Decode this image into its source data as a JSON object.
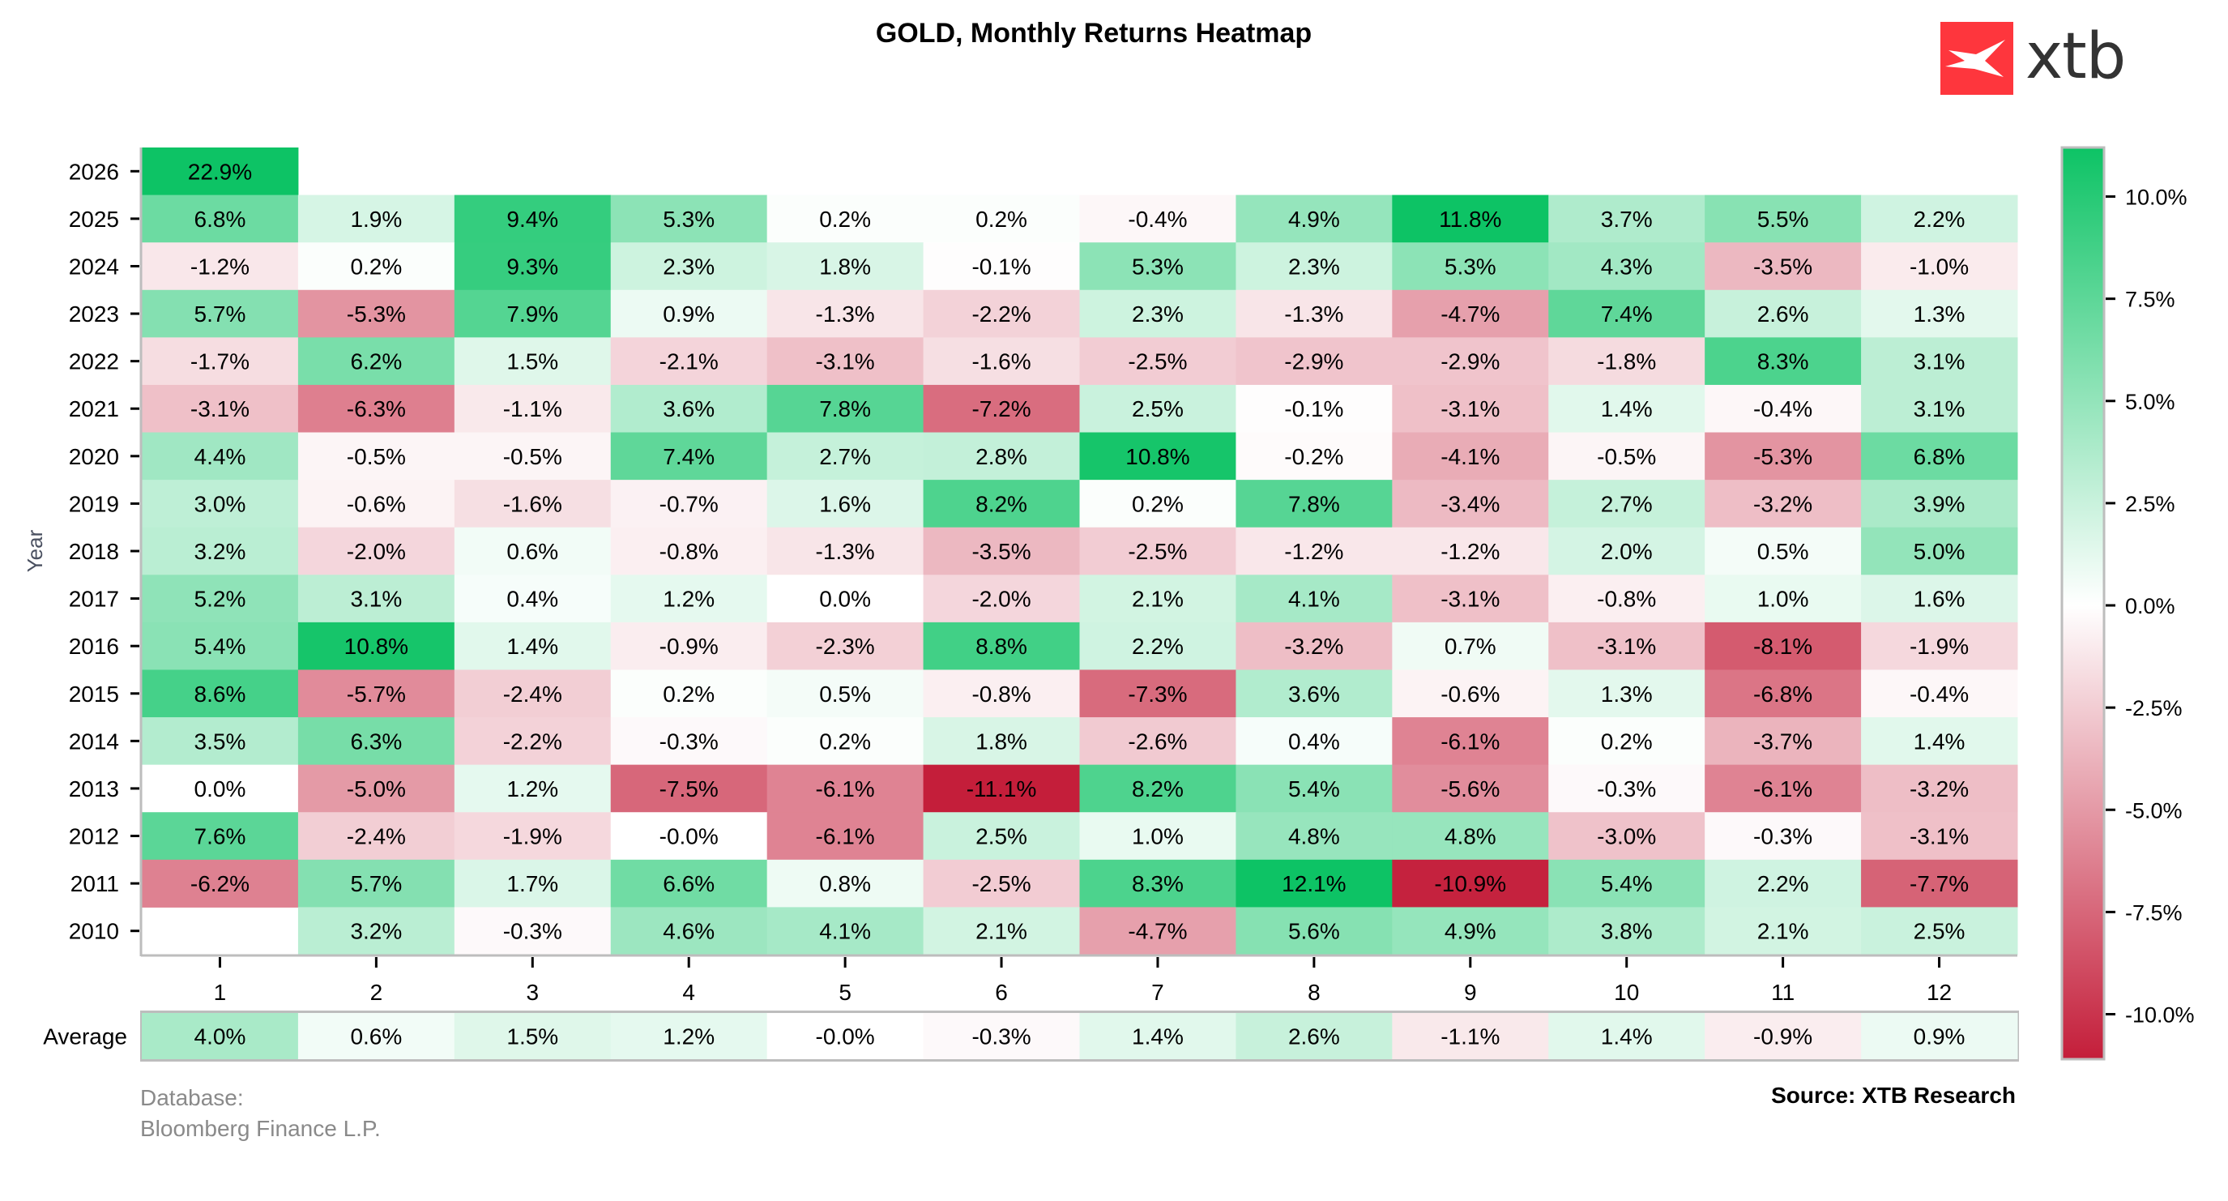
{
  "header": {
    "title": "GOLD, Monthly Returns Heatmap",
    "logo_text": "xtb",
    "logo_icon": "xtb-x-icon",
    "brand_color": "#fe363d"
  },
  "footer": {
    "database_label": "Database:",
    "database_value": "Bloomberg Finance L.P.",
    "source": "Source: XTB Research"
  },
  "chart_data": {
    "type": "heatmap",
    "title": "GOLD, Monthly Returns Heatmap",
    "xlabel": "",
    "ylabel": "Year",
    "x": [
      "1",
      "2",
      "3",
      "4",
      "5",
      "6",
      "7",
      "8",
      "9",
      "10",
      "11",
      "12"
    ],
    "y": [
      "2026",
      "2025",
      "2024",
      "2023",
      "2022",
      "2021",
      "2020",
      "2019",
      "2018",
      "2017",
      "2016",
      "2015",
      "2014",
      "2013",
      "2012",
      "2011",
      "2010"
    ],
    "unit": "%",
    "values": [
      [
        22.9,
        null,
        null,
        null,
        null,
        null,
        null,
        null,
        null,
        null,
        null,
        null
      ],
      [
        6.8,
        1.9,
        9.4,
        5.3,
        0.2,
        0.2,
        -0.4,
        4.9,
        11.8,
        3.7,
        5.5,
        2.2
      ],
      [
        -1.2,
        0.2,
        9.3,
        2.3,
        1.8,
        -0.1,
        5.3,
        2.3,
        5.3,
        4.3,
        -3.5,
        -1.0
      ],
      [
        5.7,
        -5.3,
        7.9,
        0.9,
        -1.3,
        -2.2,
        2.3,
        -1.3,
        -4.7,
        7.4,
        2.6,
        1.3
      ],
      [
        -1.7,
        6.2,
        1.5,
        -2.1,
        -3.1,
        -1.6,
        -2.5,
        -2.9,
        -2.9,
        -1.8,
        8.3,
        3.1
      ],
      [
        -3.1,
        -6.3,
        -1.1,
        3.6,
        7.8,
        -7.2,
        2.5,
        -0.1,
        -3.1,
        1.4,
        -0.4,
        3.1
      ],
      [
        4.4,
        -0.5,
        -0.5,
        7.4,
        2.7,
        2.8,
        10.8,
        -0.2,
        -4.1,
        -0.5,
        -5.3,
        6.8
      ],
      [
        3.0,
        -0.6,
        -1.6,
        -0.7,
        1.6,
        8.2,
        0.2,
        7.8,
        -3.4,
        2.7,
        -3.2,
        3.9
      ],
      [
        3.2,
        -2.0,
        0.6,
        -0.8,
        -1.3,
        -3.5,
        -2.5,
        -1.2,
        -1.2,
        2.0,
        0.5,
        5.0
      ],
      [
        5.2,
        3.1,
        0.4,
        1.2,
        0.0,
        -2.0,
        2.1,
        4.1,
        -3.1,
        -0.8,
        1.0,
        1.6
      ],
      [
        5.4,
        10.8,
        1.4,
        -0.9,
        -2.3,
        8.8,
        2.2,
        -3.2,
        0.7,
        -3.1,
        -8.1,
        -1.9
      ],
      [
        8.6,
        -5.7,
        -2.4,
        0.2,
        0.5,
        -0.8,
        -7.3,
        3.6,
        -0.6,
        1.3,
        -6.8,
        -0.4
      ],
      [
        3.5,
        6.3,
        -2.2,
        -0.3,
        0.2,
        1.8,
        -2.6,
        0.4,
        -6.1,
        0.2,
        -3.7,
        1.4
      ],
      [
        0.0,
        -5.0,
        1.2,
        -7.5,
        -6.1,
        -11.1,
        8.2,
        5.4,
        -5.6,
        -0.3,
        -6.1,
        -3.2
      ],
      [
        7.6,
        -2.4,
        -1.9,
        -0.0,
        -6.1,
        2.5,
        1.0,
        4.8,
        4.8,
        -3.0,
        -0.3,
        -3.1
      ],
      [
        -6.2,
        5.7,
        1.7,
        6.6,
        0.8,
        -2.5,
        8.3,
        12.1,
        -10.9,
        5.4,
        2.2,
        -7.7
      ],
      [
        null,
        3.2,
        -0.3,
        4.6,
        4.1,
        2.1,
        -4.7,
        5.6,
        4.9,
        3.8,
        2.1,
        2.5
      ]
    ],
    "labels": [
      [
        "22.9%",
        "",
        "",
        "",
        "",
        "",
        "",
        "",
        "",
        "",
        "",
        ""
      ],
      [
        "6.8%",
        "1.9%",
        "9.4%",
        "5.3%",
        "0.2%",
        "0.2%",
        "-0.4%",
        "4.9%",
        "11.8%",
        "3.7%",
        "5.5%",
        "2.2%"
      ],
      [
        "-1.2%",
        "0.2%",
        "9.3%",
        "2.3%",
        "1.8%",
        "-0.1%",
        "5.3%",
        "2.3%",
        "5.3%",
        "4.3%",
        "-3.5%",
        "-1.0%"
      ],
      [
        "5.7%",
        "-5.3%",
        "7.9%",
        "0.9%",
        "-1.3%",
        "-2.2%",
        "2.3%",
        "-1.3%",
        "-4.7%",
        "7.4%",
        "2.6%",
        "1.3%"
      ],
      [
        "-1.7%",
        "6.2%",
        "1.5%",
        "-2.1%",
        "-3.1%",
        "-1.6%",
        "-2.5%",
        "-2.9%",
        "-2.9%",
        "-1.8%",
        "8.3%",
        "3.1%"
      ],
      [
        "-3.1%",
        "-6.3%",
        "-1.1%",
        "3.6%",
        "7.8%",
        "-7.2%",
        "2.5%",
        "-0.1%",
        "-3.1%",
        "1.4%",
        "-0.4%",
        "3.1%"
      ],
      [
        "4.4%",
        "-0.5%",
        "-0.5%",
        "7.4%",
        "2.7%",
        "2.8%",
        "10.8%",
        "-0.2%",
        "-4.1%",
        "-0.5%",
        "-5.3%",
        "6.8%"
      ],
      [
        "3.0%",
        "-0.6%",
        "-1.6%",
        "-0.7%",
        "1.6%",
        "8.2%",
        "0.2%",
        "7.8%",
        "-3.4%",
        "2.7%",
        "-3.2%",
        "3.9%"
      ],
      [
        "3.2%",
        "-2.0%",
        "0.6%",
        "-0.8%",
        "-1.3%",
        "-3.5%",
        "-2.5%",
        "-1.2%",
        "-1.2%",
        "2.0%",
        "0.5%",
        "5.0%"
      ],
      [
        "5.2%",
        "3.1%",
        "0.4%",
        "1.2%",
        "0.0%",
        "-2.0%",
        "2.1%",
        "4.1%",
        "-3.1%",
        "-0.8%",
        "1.0%",
        "1.6%"
      ],
      [
        "5.4%",
        "10.8%",
        "1.4%",
        "-0.9%",
        "-2.3%",
        "8.8%",
        "2.2%",
        "-3.2%",
        "0.7%",
        "-3.1%",
        "-8.1%",
        "-1.9%"
      ],
      [
        "8.6%",
        "-5.7%",
        "-2.4%",
        "0.2%",
        "0.5%",
        "-0.8%",
        "-7.3%",
        "3.6%",
        "-0.6%",
        "1.3%",
        "-6.8%",
        "-0.4%"
      ],
      [
        "3.5%",
        "6.3%",
        "-2.2%",
        "-0.3%",
        "0.2%",
        "1.8%",
        "-2.6%",
        "0.4%",
        "-6.1%",
        "0.2%",
        "-3.7%",
        "1.4%"
      ],
      [
        "0.0%",
        "-5.0%",
        "1.2%",
        "-7.5%",
        "-6.1%",
        "-11.1%",
        "8.2%",
        "5.4%",
        "-5.6%",
        "-0.3%",
        "-6.1%",
        "-3.2%"
      ],
      [
        "7.6%",
        "-2.4%",
        "-1.9%",
        "-0.0%",
        "-6.1%",
        "2.5%",
        "1.0%",
        "4.8%",
        "4.8%",
        "-3.0%",
        "-0.3%",
        "-3.1%"
      ],
      [
        "-6.2%",
        "5.7%",
        "1.7%",
        "6.6%",
        "0.8%",
        "-2.5%",
        "8.3%",
        "12.1%",
        "-10.9%",
        "5.4%",
        "2.2%",
        "-7.7%"
      ],
      [
        "",
        "3.2%",
        "-0.3%",
        "4.6%",
        "4.1%",
        "2.1%",
        "-4.7%",
        "5.6%",
        "4.9%",
        "3.8%",
        "2.1%",
        "2.5%"
      ]
    ],
    "average": {
      "label": "Average",
      "values": [
        4.0,
        0.6,
        1.5,
        1.2,
        -0.0,
        -0.3,
        1.4,
        2.6,
        -1.1,
        1.4,
        -0.9,
        0.9
      ],
      "labels": [
        "4.0%",
        "0.6%",
        "1.5%",
        "1.2%",
        "-0.0%",
        "-0.3%",
        "1.4%",
        "2.6%",
        "-1.1%",
        "1.4%",
        "-0.9%",
        "0.9%"
      ]
    },
    "colorbar": {
      "range": [
        -11.1,
        11.2
      ],
      "ticks": [
        10.0,
        7.5,
        5.0,
        2.5,
        0.0,
        -2.5,
        -5.0,
        -7.5,
        -10.0
      ],
      "tick_labels": [
        "10.0%",
        "7.5%",
        "5.0%",
        "2.5%",
        "0.0%",
        "-2.5%",
        "-5.0%",
        "-7.5%",
        "-10.0%"
      ],
      "color_negative": "#c41e3a",
      "color_zero": "#ffffff",
      "color_positive": "#0dc365"
    },
    "grid": false,
    "legend": "colorbar-right"
  }
}
